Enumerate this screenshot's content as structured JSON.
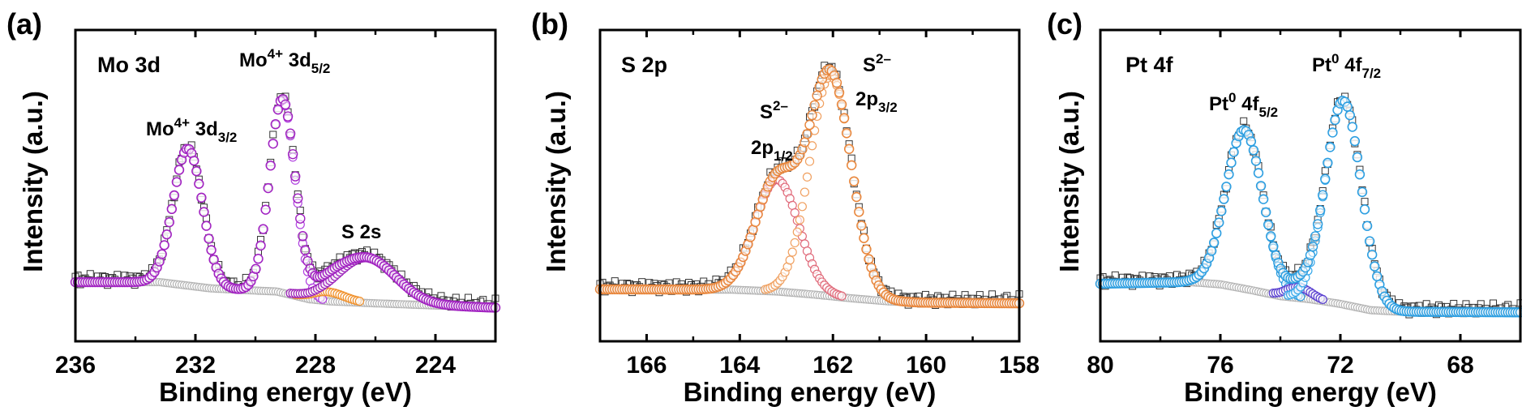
{
  "chart_data": [
    {
      "panel_label": "(a)",
      "type": "scatter",
      "title": "Mo 3d",
      "xlabel": "Binding energy (eV)",
      "ylabel": "Intensity (a.u.)",
      "xlim": [
        236,
        222
      ],
      "x_reversed": true,
      "y_ticks": "none",
      "grid": false,
      "legend": "none",
      "x_major_ticks": [
        236,
        232,
        228,
        224
      ],
      "x_minor_ticks": [
        234,
        230,
        226,
        222
      ],
      "x_tick_labels": [
        "236",
        "232",
        "228",
        "224"
      ],
      "envelope_color": "#a020c0",
      "raw_color": "#333333",
      "background_color": "#b4b4b4",
      "background": {
        "x": [
          236,
          233.2,
          231.5,
          230.5,
          229.3,
          228.2,
          227.5,
          226,
          224,
          222
        ],
        "y": [
          0.19,
          0.19,
          0.17,
          0.165,
          0.16,
          0.135,
          0.128,
          0.122,
          0.115,
          0.108
        ]
      },
      "peaks": [
        {
          "center": 232.25,
          "height": 0.44,
          "fwhm": 1.15,
          "color": "#a020c0"
        },
        {
          "center": 229.1,
          "height": 0.62,
          "fwhm": 1.0,
          "color": "#b040e0"
        },
        {
          "center": 227.6,
          "height": 0.03,
          "fwhm": 1.3,
          "color": "#f0902a"
        },
        {
          "center": 226.3,
          "height": 0.145,
          "fwhm": 2.3,
          "color": "#9a20b8"
        }
      ],
      "annotations": [
        {
          "base": "Mo",
          "sup": "4+",
          "mid": " 3d",
          "sub": "5/2"
        },
        {
          "base": "Mo",
          "sup": "4+",
          "mid": " 3d",
          "sub": "3/2"
        },
        {
          "base": "S 2s",
          "sup": "",
          "mid": "",
          "sub": ""
        }
      ]
    },
    {
      "panel_label": "(b)",
      "type": "scatter",
      "title": "S 2p",
      "xlabel": "Binding energy (eV)",
      "ylabel": "Intensity (a.u.)",
      "xlim": [
        167,
        158
      ],
      "x_reversed": true,
      "y_ticks": "none",
      "grid": false,
      "legend": "none",
      "x_major_ticks": [
        166,
        164,
        162,
        160,
        158
      ],
      "x_minor_ticks": [
        165,
        163,
        161,
        159
      ],
      "x_tick_labels": [
        "166",
        "164",
        "162",
        "160",
        "158"
      ],
      "envelope_color": "#e8853a",
      "raw_color": "#333333",
      "background_color": "#b4b4b4",
      "background": {
        "x": [
          167,
          164.2,
          163.2,
          162.4,
          161.6,
          160.8,
          160,
          158
        ],
        "y": [
          0.167,
          0.166,
          0.16,
          0.15,
          0.138,
          0.128,
          0.124,
          0.122
        ]
      },
      "peaks": [
        {
          "center": 163.2,
          "height": 0.36,
          "fwhm": 1.1,
          "color": "#e06a7a"
        },
        {
          "center": 162.05,
          "height": 0.71,
          "fwhm": 1.05,
          "color": "#f0a060"
        }
      ],
      "annotations": [
        {
          "base": "S",
          "sup": "2–",
          "mid": "",
          "sub": ""
        },
        {
          "base": "2p",
          "sup": "",
          "mid": "",
          "sub": "1/2"
        },
        {
          "base": "S",
          "sup": "2–",
          "mid": "",
          "sub": ""
        },
        {
          "base": "2p",
          "sup": "",
          "mid": "",
          "sub": "3/2"
        }
      ]
    },
    {
      "panel_label": "(c)",
      "type": "scatter",
      "title": "Pt 4f",
      "xlabel": "Binding energy (eV)",
      "ylabel": "Intensity (a.u.)",
      "xlim": [
        80,
        66
      ],
      "x_reversed": true,
      "y_ticks": "none",
      "grid": false,
      "legend": "none",
      "x_major_ticks": [
        80,
        76,
        72,
        68
      ],
      "x_minor_ticks": [
        78,
        74,
        70,
        66
      ],
      "x_tick_labels": [
        "80",
        "76",
        "72",
        "68"
      ],
      "envelope_color": "#2a9de0",
      "raw_color": "#333333",
      "background_color": "#b4b4b4",
      "background": {
        "x": [
          80,
          77,
          76,
          75,
          74,
          73,
          72,
          71,
          70,
          66
        ],
        "y": [
          0.185,
          0.19,
          0.183,
          0.165,
          0.145,
          0.135,
          0.12,
          0.1,
          0.095,
          0.093
        ]
      },
      "peaks": [
        {
          "center": 75.2,
          "height": 0.51,
          "fwhm": 1.45,
          "color": "#2a9de0"
        },
        {
          "center": 73.4,
          "height": 0.035,
          "fwhm": 1.0,
          "color": "#5a40d0"
        },
        {
          "center": 71.9,
          "height": 0.655,
          "fwhm": 1.4,
          "color": "#35a8ea"
        }
      ],
      "annotations": [
        {
          "base": "Pt",
          "sup": "0",
          "mid": " 4f",
          "sub": "7/2"
        },
        {
          "base": "Pt",
          "sup": "0",
          "mid": " 4f",
          "sub": "5/2"
        }
      ]
    }
  ]
}
